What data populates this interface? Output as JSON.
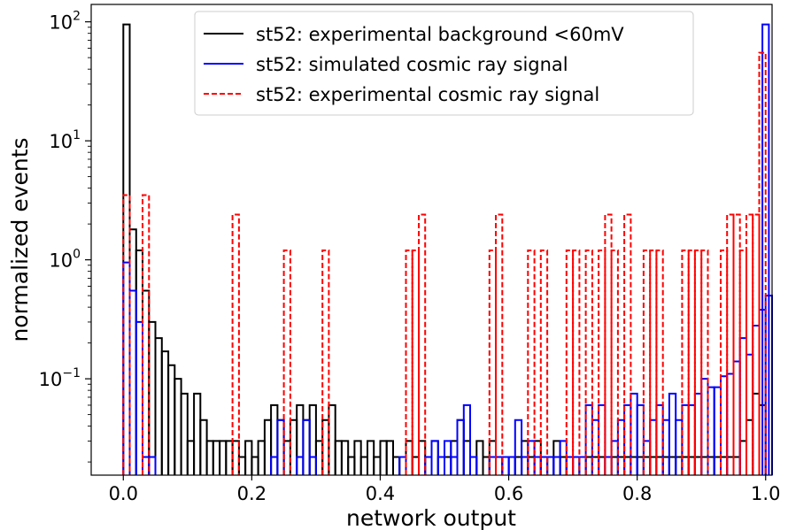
{
  "chart_data": {
    "type": "histogram",
    "xlabel": "network output",
    "ylabel": "normalized events",
    "xlim": [
      -0.05,
      1.01
    ],
    "ylim": [
      0.0155,
      140
    ],
    "yscale": "log",
    "x_ticks": [
      "0.0",
      "0.2",
      "0.4",
      "0.6",
      "0.8",
      "1.0"
    ],
    "x_tick_values": [
      0.0,
      0.2,
      0.4,
      0.6,
      0.8,
      1.0
    ],
    "y_ticks": [
      {
        "base": "10",
        "exp": "2",
        "value": 100
      },
      {
        "base": "10",
        "exp": "1",
        "value": 10
      },
      {
        "base": "10",
        "exp": "0",
        "value": 1
      },
      {
        "base": "10",
        "exp": "−1",
        "value": 0.1
      }
    ],
    "bin_width": 0.01,
    "legend_position": "top-center",
    "series": [
      {
        "name": "st52: experimental background <60mV",
        "color": "#000000",
        "style": "solid",
        "bins": [
          [
            0.0,
            95
          ],
          [
            0.01,
            1.8
          ],
          [
            0.02,
            1.2
          ],
          [
            0.03,
            0.55
          ],
          [
            0.04,
            0.3
          ],
          [
            0.05,
            0.22
          ],
          [
            0.06,
            0.17
          ],
          [
            0.07,
            0.13
          ],
          [
            0.08,
            0.1
          ],
          [
            0.09,
            0.075
          ],
          [
            0.1,
            0.03
          ],
          [
            0.11,
            0.075
          ],
          [
            0.12,
            0.045
          ],
          [
            0.13,
            0.03
          ],
          [
            0.14,
            0.03
          ],
          [
            0.15,
            0.03
          ],
          [
            0.16,
            0.03
          ],
          [
            0.17,
            0.03
          ],
          [
            0.18,
            0.022
          ],
          [
            0.19,
            0.03
          ],
          [
            0.2,
            0.022
          ],
          [
            0.21,
            0.03
          ],
          [
            0.22,
            0.045
          ],
          [
            0.23,
            0.06
          ],
          [
            0.24,
            0.045
          ],
          [
            0.25,
            0.03
          ],
          [
            0.26,
            0.045
          ],
          [
            0.27,
            0.06
          ],
          [
            0.28,
            0.045
          ],
          [
            0.29,
            0.06
          ],
          [
            0.3,
            0.03
          ],
          [
            0.31,
            0.045
          ],
          [
            0.32,
            0.06
          ],
          [
            0.33,
            0.03
          ],
          [
            0.34,
            0.03
          ],
          [
            0.35,
            0.022
          ],
          [
            0.36,
            0.03
          ],
          [
            0.37,
            0.022
          ],
          [
            0.38,
            0.03
          ],
          [
            0.39,
            0.022
          ],
          [
            0.4,
            0.03
          ],
          [
            0.41,
            0.03
          ],
          [
            0.42,
            0.022
          ],
          [
            0.43,
            0.022
          ],
          [
            0.44,
            0.03
          ],
          [
            0.45,
            0.022
          ],
          [
            0.46,
            0.03
          ],
          [
            0.47,
            0.022
          ],
          [
            0.48,
            0.03
          ],
          [
            0.49,
            0.022
          ],
          [
            0.5,
            0.022
          ],
          [
            0.51,
            0.03
          ],
          [
            0.52,
            0.045
          ],
          [
            0.53,
            0.03
          ],
          [
            0.54,
            0.022
          ],
          [
            0.55,
            0.03
          ],
          [
            0.56,
            0.022
          ],
          [
            0.57,
            0.03
          ],
          [
            0.58,
            0.022
          ],
          [
            0.59,
            0.022
          ],
          [
            0.6,
            0.022
          ],
          [
            0.61,
            0.022
          ],
          [
            0.62,
            0.03
          ],
          [
            0.63,
            0.022
          ],
          [
            0.64,
            0.03
          ],
          [
            0.65,
            0.022
          ],
          [
            0.66,
            0.022
          ],
          [
            0.67,
            0.03
          ],
          [
            0.68,
            0.022
          ],
          [
            0.69,
            0.022
          ],
          [
            0.7,
            0.022
          ],
          [
            0.71,
            0.022
          ],
          [
            0.72,
            0.022
          ],
          [
            0.73,
            0.022
          ],
          [
            0.74,
            0.022
          ],
          [
            0.75,
            0.022
          ],
          [
            0.76,
            0.022
          ],
          [
            0.77,
            0.022
          ],
          [
            0.78,
            0.022
          ],
          [
            0.79,
            0.022
          ],
          [
            0.8,
            0.022
          ],
          [
            0.81,
            0.022
          ],
          [
            0.82,
            0.022
          ],
          [
            0.83,
            0.022
          ],
          [
            0.84,
            0.022
          ],
          [
            0.85,
            0.022
          ],
          [
            0.86,
            0.022
          ],
          [
            0.87,
            0.022
          ],
          [
            0.88,
            0.022
          ],
          [
            0.89,
            0.022
          ],
          [
            0.9,
            0.022
          ],
          [
            0.91,
            0.022
          ],
          [
            0.92,
            0.022
          ],
          [
            0.93,
            0.022
          ],
          [
            0.94,
            0.022
          ],
          [
            0.95,
            0.022
          ],
          [
            0.96,
            0.03
          ],
          [
            0.97,
            0.045
          ],
          [
            0.98,
            0.075
          ],
          [
            0.99,
            0.06
          ]
        ]
      },
      {
        "name": "st52: simulated cosmic ray signal",
        "color": "#0000ff",
        "style": "solid",
        "bins": [
          [
            0.0,
            0.95
          ],
          [
            0.01,
            0.55
          ],
          [
            0.02,
            0.3
          ],
          [
            0.03,
            0.022
          ],
          [
            0.04,
            0.022
          ],
          [
            0.23,
            0.022
          ],
          [
            0.24,
            0.045
          ],
          [
            0.27,
            0.022
          ],
          [
            0.28,
            0.045
          ],
          [
            0.29,
            0.022
          ],
          [
            0.43,
            0.022
          ],
          [
            0.47,
            0.022
          ],
          [
            0.48,
            0.03
          ],
          [
            0.49,
            0.022
          ],
          [
            0.5,
            0.03
          ],
          [
            0.51,
            0.022
          ],
          [
            0.52,
            0.045
          ],
          [
            0.53,
            0.06
          ],
          [
            0.54,
            0.022
          ],
          [
            0.57,
            0.022
          ],
          [
            0.58,
            0.022
          ],
          [
            0.59,
            0.022
          ],
          [
            0.6,
            0.022
          ],
          [
            0.61,
            0.045
          ],
          [
            0.62,
            0.022
          ],
          [
            0.63,
            0.03
          ],
          [
            0.64,
            0.022
          ],
          [
            0.65,
            0.022
          ],
          [
            0.66,
            0.022
          ],
          [
            0.67,
            0.022
          ],
          [
            0.68,
            0.03
          ],
          [
            0.69,
            0.022
          ],
          [
            0.7,
            0.022
          ],
          [
            0.71,
            0.022
          ],
          [
            0.72,
            0.06
          ],
          [
            0.73,
            0.045
          ],
          [
            0.74,
            0.06
          ],
          [
            0.75,
            0.022
          ],
          [
            0.76,
            0.03
          ],
          [
            0.77,
            0.045
          ],
          [
            0.78,
            0.06
          ],
          [
            0.79,
            0.075
          ],
          [
            0.8,
            0.06
          ],
          [
            0.81,
            0.03
          ],
          [
            0.82,
            0.045
          ],
          [
            0.83,
            0.06
          ],
          [
            0.84,
            0.045
          ],
          [
            0.85,
            0.075
          ],
          [
            0.86,
            0.045
          ],
          [
            0.87,
            0.06
          ],
          [
            0.88,
            0.06
          ],
          [
            0.89,
            0.075
          ],
          [
            0.9,
            0.1
          ],
          [
            0.91,
            0.085
          ],
          [
            0.92,
            0.085
          ],
          [
            0.93,
            0.105
          ],
          [
            0.94,
            0.11
          ],
          [
            0.95,
            0.14
          ],
          [
            0.96,
            0.22
          ],
          [
            0.97,
            0.16
          ],
          [
            0.98,
            0.28
          ],
          [
            0.99,
            0.38
          ],
          [
            1.0,
            0.5
          ],
          [
            0.995,
            95
          ]
        ]
      },
      {
        "name": "st52: experimental cosmic ray signal",
        "color": "#ff0000",
        "style": "dashed",
        "bins": [
          [
            0.0,
            3.5
          ],
          [
            0.03,
            3.5
          ],
          [
            0.17,
            2.4
          ],
          [
            0.25,
            1.2
          ],
          [
            0.31,
            1.2
          ],
          [
            0.44,
            1.2
          ],
          [
            0.45,
            1.2
          ],
          [
            0.46,
            2.4
          ],
          [
            0.57,
            1.2
          ],
          [
            0.58,
            2.4
          ],
          [
            0.63,
            1.2
          ],
          [
            0.65,
            1.2
          ],
          [
            0.69,
            1.2
          ],
          [
            0.7,
            1.2
          ],
          [
            0.72,
            1.2
          ],
          [
            0.74,
            1.2
          ],
          [
            0.75,
            2.4
          ],
          [
            0.76,
            1.2
          ],
          [
            0.78,
            2.4
          ],
          [
            0.81,
            1.2
          ],
          [
            0.82,
            1.2
          ],
          [
            0.83,
            1.2
          ],
          [
            0.87,
            1.2
          ],
          [
            0.88,
            1.2
          ],
          [
            0.89,
            1.2
          ],
          [
            0.9,
            1.2
          ],
          [
            0.93,
            1.2
          ],
          [
            0.94,
            2.4
          ],
          [
            0.95,
            2.4
          ],
          [
            0.96,
            1.2
          ],
          [
            0.97,
            2.4
          ],
          [
            0.98,
            2.4
          ],
          [
            0.99,
            55
          ]
        ]
      }
    ]
  }
}
